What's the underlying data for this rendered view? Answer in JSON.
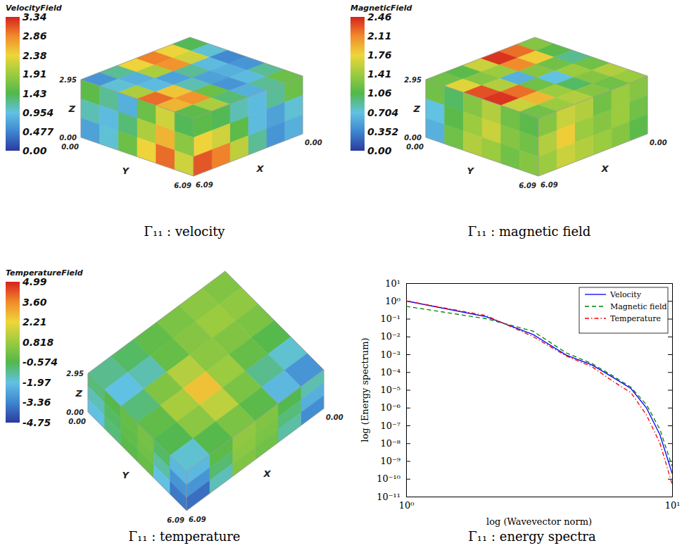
{
  "chart_data": [
    {
      "type": "volume",
      "title": "VelocityField",
      "caption": "Γ₁₁ : velocity",
      "x_label": "X",
      "y_label": "Y",
      "z_label": "Z",
      "xlim": [
        0,
        6.09
      ],
      "ylim": [
        0,
        6.09
      ],
      "zlim": [
        0,
        2.95
      ],
      "xticks": [
        {
          "value": 0,
          "label": "0.00"
        },
        6.09
      ],
      "yticks": [
        {
          "value": 0,
          "label": "0.00"
        },
        6.09
      ],
      "zticks": [
        {
          "value": 0,
          "label": "0.00"
        },
        2.95
      ],
      "colorbar": {
        "range": [
          0,
          3.34
        ],
        "ticks": [
          {
            "value": 0,
            "label": "0.00"
          },
          0.477,
          0.954,
          1.43,
          1.91,
          2.38,
          2.86,
          3.34
        ]
      },
      "cells": {
        "top": [
          [
            1.4,
            2.4,
            2.9,
            2.4,
            1.2,
            0.6
          ],
          [
            1.0,
            2.2,
            2.8,
            2.0,
            0.8,
            1.0
          ],
          [
            0.5,
            0.9,
            1.2,
            0.7,
            0.9,
            2.0
          ],
          [
            0.6,
            0.8,
            0.7,
            1.1,
            2.5,
            3.0
          ],
          [
            1.2,
            0.9,
            0.6,
            1.6,
            2.8,
            2.6
          ],
          [
            1.6,
            1.2,
            0.8,
            1.3,
            2.0,
            1.5
          ]
        ],
        "x_face": [
          [
            1.5,
            1.2,
            0.8,
            1.6,
            2.2,
            1.4
          ],
          [
            1.1,
            0.9,
            1.3,
            2.0,
            2.6,
            1.8
          ],
          [
            0.7,
            1.0,
            1.6,
            2.4,
            3.0,
            2.2
          ]
        ],
        "y_face": [
          [
            1.6,
            1.2,
            0.9,
            1.1,
            1.4,
            1.5
          ],
          [
            1.0,
            0.7,
            0.9,
            1.5,
            2.2,
            2.4
          ],
          [
            0.8,
            0.6,
            1.2,
            2.1,
            2.9,
            3.1
          ]
        ]
      }
    },
    {
      "type": "volume",
      "title": "MagneticField",
      "caption": "Γ₁₁ : magnetic field",
      "x_label": "X",
      "y_label": "Y",
      "z_label": "Z",
      "xlim": [
        0,
        6.09
      ],
      "ylim": [
        0,
        6.09
      ],
      "zlim": [
        0,
        2.95
      ],
      "xticks": [
        {
          "value": 0,
          "label": "0.00"
        },
        6.09
      ],
      "yticks": [
        {
          "value": 0,
          "label": "0.00"
        },
        6.09
      ],
      "zticks": [
        {
          "value": 0,
          "label": "0.00"
        },
        2.95
      ],
      "colorbar": {
        "range": [
          0,
          2.46
        ],
        "ticks": [
          {
            "value": 0,
            "label": "0.00"
          },
          0.352,
          0.704,
          1.06,
          1.41,
          1.76,
          2.11,
          2.46
        ]
      },
      "cells": {
        "top": [
          [
            1.3,
            2.2,
            2.4,
            1.6,
            1.1,
            1.2
          ],
          [
            1.1,
            1.8,
            2.1,
            1.4,
            1.3,
            1.7
          ],
          [
            0.9,
            1.2,
            1.3,
            0.6,
            1.5,
            2.3
          ],
          [
            1.2,
            1.4,
            0.7,
            1.2,
            2.2,
            2.4
          ],
          [
            1.5,
            1.3,
            1.0,
            1.4,
            1.9,
            1.6
          ],
          [
            1.4,
            1.2,
            1.3,
            1.5,
            1.4,
            1.2
          ]
        ],
        "x_face": [
          [
            1.2,
            1.0,
            1.3,
            1.5,
            1.2,
            1.1
          ],
          [
            0.7,
            1.1,
            1.4,
            1.6,
            1.3,
            1.2
          ],
          [
            0.6,
            1.2,
            1.5,
            1.4,
            1.2,
            1.3
          ]
        ],
        "y_face": [
          [
            1.3,
            1.4,
            1.2,
            1.5,
            1.6,
            1.3
          ],
          [
            1.2,
            1.4,
            1.3,
            1.4,
            1.8,
            1.5
          ],
          [
            1.1,
            1.3,
            1.4,
            1.5,
            1.6,
            1.4
          ]
        ]
      }
    },
    {
      "type": "volume",
      "title": "TemperatureField",
      "caption": "Γ₁₁ : temperature",
      "x_label": "X",
      "y_label": "Y",
      "z_label": "Z",
      "xlim": [
        0,
        6.09
      ],
      "ylim": [
        0,
        6.09
      ],
      "zlim": [
        0,
        2.95
      ],
      "xticks": [
        {
          "value": 0,
          "label": "0.00"
        },
        6.09
      ],
      "yticks": [
        {
          "value": 0,
          "label": "0.00"
        },
        6.09
      ],
      "zticks": [
        {
          "value": 0,
          "label": "0.00"
        },
        2.95
      ],
      "colorbar": {
        "range": [
          -4.75,
          4.99
        ],
        "ticks": [
          -4.75,
          -3.36,
          -1.97,
          -0.574,
          0.818,
          2.21,
          {
            "value": 3.6,
            "label": "3.60"
          },
          4.99
        ]
      },
      "cells": {
        "top": [
          [
            0.3,
            0.5,
            0.2,
            -0.3,
            -0.8,
            -1.2
          ],
          [
            0.6,
            0.8,
            0.4,
            -0.2,
            -1.5,
            -2.0
          ],
          [
            0.2,
            0.3,
            0.5,
            1.2,
            0.3,
            -1.0
          ],
          [
            -0.5,
            -0.2,
            0.8,
            2.6,
            1.0,
            -0.3
          ],
          [
            -1.8,
            -1.2,
            0.2,
            1.4,
            0.5,
            -0.6
          ],
          [
            -3.0,
            -2.2,
            -0.4,
            0.2,
            -0.5,
            -1.8
          ]
        ],
        "x_face": [
          [
            -1.0,
            -0.5,
            -0.2,
            0.1,
            -0.8,
            -2.2
          ],
          [
            -1.6,
            -0.8,
            -0.3,
            0.0,
            -1.4,
            -3.0
          ],
          [
            -2.0,
            -1.0,
            -0.4,
            -0.2,
            -2.0,
            -3.6
          ]
        ],
        "y_face": [
          [
            -1.5,
            -0.6,
            0.3,
            0.6,
            -0.4,
            -2.2
          ],
          [
            -2.4,
            -1.0,
            0.2,
            0.5,
            -0.9,
            -3.0
          ],
          [
            -3.2,
            -1.4,
            0.0,
            0.3,
            -1.6,
            -3.8
          ]
        ]
      }
    },
    {
      "type": "line",
      "caption": "Γ₁₁ : energy spectra",
      "x_label": "log (Wavevector norm)",
      "y_label": "log (Energy spectrum)",
      "log": true,
      "legend": "upper right",
      "x": [
        1,
        2,
        3,
        4,
        5,
        6,
        7,
        8,
        9,
        10
      ],
      "xlim": [
        1,
        10
      ],
      "xticks": [
        {
          "value": 1,
          "label": "10⁰"
        },
        {
          "value": 10,
          "label": "10¹"
        }
      ],
      "ylim": [
        1e-11,
        10
      ],
      "yticks": [
        {
          "value": 10,
          "label": "10¹"
        },
        {
          "value": 1,
          "label": "10⁰"
        },
        {
          "value": 0.1,
          "label": "10⁻¹"
        },
        {
          "value": 0.01,
          "label": "10⁻²"
        },
        {
          "value": 0.001,
          "label": "10⁻³"
        },
        {
          "value": 0.0001,
          "label": "10⁻⁴"
        },
        {
          "value": 1e-05,
          "label": "10⁻⁵"
        },
        {
          "value": 1e-06,
          "label": "10⁻⁶"
        },
        {
          "value": 1e-07,
          "label": "10⁻⁷"
        },
        {
          "value": 1e-08,
          "label": "10⁻⁸"
        },
        {
          "value": 1e-09,
          "label": "10⁻⁹"
        },
        {
          "value": 1e-10,
          "label": "10⁻¹⁰"
        },
        {
          "value": 1e-11,
          "label": "10⁻¹¹"
        }
      ],
      "series": [
        {
          "name": "Velocity",
          "color": "#0000ff",
          "line_style": "solid",
          "values": [
            1.0,
            0.13,
            0.013,
            0.0009,
            0.00025,
            5e-05,
            1.2e-05,
            1e-06,
            3e-08,
            2e-10
          ]
        },
        {
          "name": "Magnetic field",
          "color": "#008000",
          "line_style": "dashed",
          "values": [
            0.5,
            0.1,
            0.02,
            0.0012,
            0.0003,
            6e-05,
            1.4e-05,
            1.5e-06,
            6e-08,
            5e-10
          ]
        },
        {
          "name": "Temperature",
          "color": "#ff0000",
          "line_style": "dashdot",
          "values": [
            1.0,
            0.15,
            0.01,
            0.0008,
            0.0002,
            3e-05,
            7e-06,
            4e-07,
            1e-08,
            5e-11
          ]
        }
      ]
    }
  ]
}
